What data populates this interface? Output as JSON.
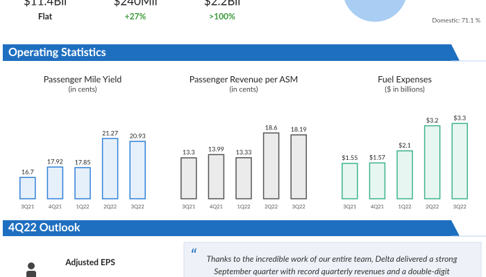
{
  "summary": [
    {
      "value": "$11.4Bil",
      "change": "Flat"
    },
    {
      "value": "$240Mil",
      "change": "+27%"
    },
    {
      "value": "$2.2Bil",
      "change": ">100%"
    }
  ],
  "pie_label": "Domestic: 71.1 %",
  "sections": [
    "Operating Statistics",
    "4Q22 Outlook"
  ],
  "chart_data": [
    {
      "type": "bar",
      "title": "Passenger Mile Yield",
      "subtitle": "(in cents)",
      "categories": [
        "3Q21",
        "4Q21",
        "1Q22",
        "2Q22",
        "3Q22"
      ],
      "values": [
        16.7,
        17.92,
        17.85,
        21.27,
        20.93
      ],
      "color": "#2f80d8",
      "ylim": [
        14.2,
        23.3
      ]
    },
    {
      "type": "bar",
      "title": "Passenger Revenue per ASM",
      "subtitle": "(in cents)",
      "categories": [
        "3Q21",
        "4Q21",
        "1Q22",
        "2Q22",
        "3Q22"
      ],
      "values": [
        13.3,
        13.99,
        13.33,
        18.6,
        18.19
      ],
      "color": "#555555",
      "ylim": [
        4.6,
        21.1
      ]
    },
    {
      "type": "bar",
      "title": "Fuel Expenses",
      "subtitle": "($ in billions)",
      "categories": [
        "3Q21",
        "4Q21",
        "1Q22",
        "2Q22",
        "3Q22"
      ],
      "values": [
        1.55,
        1.57,
        2.1,
        3.2,
        3.3
      ],
      "value_labels": [
        "$1.55",
        "$1.57",
        "$2.1",
        "$3.2",
        "$3.3"
      ],
      "color": "#3cb38a",
      "ylim": [
        0,
        3.4
      ]
    }
  ],
  "outlook": {
    "metric": "Adjusted EPS",
    "quote": [
      "Thanks to the incredible work of our entire team, Delta delivered a strong",
      "September quarter with record quarterly revenues and a double-digit"
    ]
  }
}
